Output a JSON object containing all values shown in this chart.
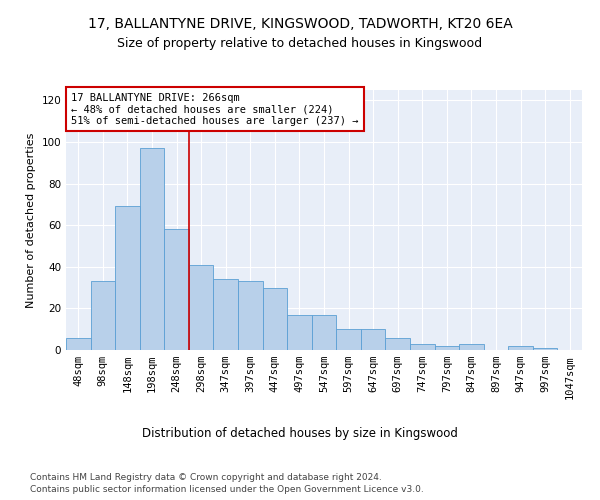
{
  "title1": "17, BALLANTYNE DRIVE, KINGSWOOD, TADWORTH, KT20 6EA",
  "title2": "Size of property relative to detached houses in Kingswood",
  "xlabel": "Distribution of detached houses by size in Kingswood",
  "ylabel": "Number of detached properties",
  "categories": [
    "48sqm",
    "98sqm",
    "148sqm",
    "198sqm",
    "248sqm",
    "298sqm",
    "347sqm",
    "397sqm",
    "447sqm",
    "497sqm",
    "547sqm",
    "597sqm",
    "647sqm",
    "697sqm",
    "747sqm",
    "797sqm",
    "847sqm",
    "897sqm",
    "947sqm",
    "997sqm",
    "1047sqm"
  ],
  "values": [
    6,
    33,
    69,
    97,
    58,
    41,
    34,
    33,
    30,
    17,
    17,
    10,
    10,
    6,
    3,
    2,
    3,
    0,
    2,
    1,
    0
  ],
  "bar_color": "#b8d0ea",
  "bar_edge_color": "#5a9fd4",
  "property_line_x": 4.5,
  "annotation_text": "17 BALLANTYNE DRIVE: 266sqm\n← 48% of detached houses are smaller (224)\n51% of semi-detached houses are larger (237) →",
  "annotation_box_color": "#ffffff",
  "annotation_box_edge_color": "#cc0000",
  "vline_color": "#cc0000",
  "ylim": [
    0,
    125
  ],
  "yticks": [
    0,
    20,
    40,
    60,
    80,
    100,
    120
  ],
  "bg_color": "#e8eef8",
  "footer1": "Contains HM Land Registry data © Crown copyright and database right 2024.",
  "footer2": "Contains public sector information licensed under the Open Government Licence v3.0.",
  "title1_fontsize": 10,
  "title2_fontsize": 9,
  "xlabel_fontsize": 8.5,
  "ylabel_fontsize": 8,
  "tick_fontsize": 7.5,
  "annotation_fontsize": 7.5,
  "footer_fontsize": 6.5
}
